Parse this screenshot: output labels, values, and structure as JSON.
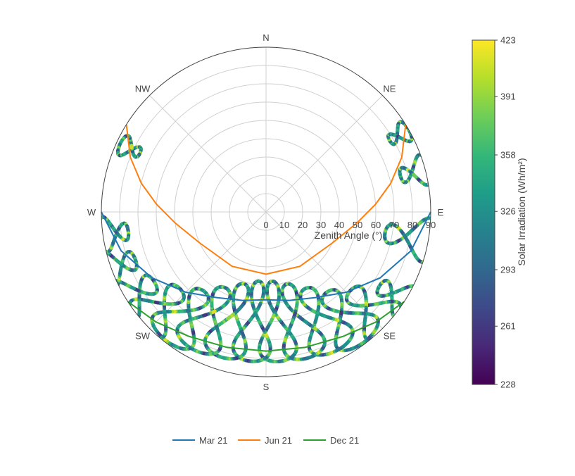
{
  "chart_data": {
    "type": "polar-line",
    "radial_axis": {
      "title": "Zenith Angle (°)",
      "range": [
        0,
        90
      ],
      "tick_labels": [
        "0",
        "10",
        "20",
        "30",
        "40",
        "50",
        "60",
        "70",
        "80",
        "90"
      ]
    },
    "angular_axis": {
      "labels": [
        "N",
        "NE",
        "E",
        "SE",
        "S",
        "SW",
        "W",
        "NW"
      ],
      "directions_deg": [
        0,
        45,
        90,
        135,
        180,
        225,
        270,
        315
      ]
    },
    "series": [
      {
        "name": "Mar 21",
        "color": "#1f77b4",
        "points": [
          [
            90,
            90
          ],
          [
            82,
            105
          ],
          [
            72,
            120
          ],
          [
            62,
            135
          ],
          [
            54,
            150
          ],
          [
            50,
            165
          ],
          [
            48,
            180
          ],
          [
            50,
            195
          ],
          [
            54,
            210
          ],
          [
            62,
            225
          ],
          [
            72,
            240
          ],
          [
            82,
            255
          ],
          [
            90,
            270
          ]
        ]
      },
      {
        "name": "Jun 21",
        "color": "#ff7f0e",
        "points": [
          [
            90,
            58
          ],
          [
            80,
            68
          ],
          [
            70,
            77
          ],
          [
            60,
            86
          ],
          [
            50,
            97
          ],
          [
            40,
            115
          ],
          [
            35,
            148
          ],
          [
            34,
            180
          ],
          [
            35,
            212
          ],
          [
            40,
            245
          ],
          [
            50,
            263
          ],
          [
            60,
            274
          ],
          [
            70,
            283
          ],
          [
            80,
            292
          ],
          [
            90,
            302
          ]
        ]
      },
      {
        "name": "Dec 21",
        "color": "#2ca02c",
        "points": [
          [
            90,
            123
          ],
          [
            85,
            135
          ],
          [
            80,
            148
          ],
          [
            77,
            164
          ],
          [
            76,
            180
          ],
          [
            77,
            196
          ],
          [
            80,
            212
          ],
          [
            85,
            225
          ],
          [
            90,
            237
          ]
        ]
      }
    ],
    "analemmas": {
      "colorbar_variable": "Solar Irradiation (Wh/m²)",
      "hour_tracks": [
        {
          "center": [
            84,
            123
          ],
          "half_span": [
            10,
            8
          ]
        },
        {
          "center": [
            78,
            133
          ],
          "half_span": [
            15,
            11
          ]
        },
        {
          "center": [
            72,
            143
          ],
          "half_span": [
            17,
            12
          ]
        },
        {
          "center": [
            66,
            153
          ],
          "half_span": [
            19,
            12
          ]
        },
        {
          "center": [
            62,
            164
          ],
          "half_span": [
            21,
            11
          ]
        },
        {
          "center": [
            60,
            175
          ],
          "half_span": [
            22,
            10
          ]
        },
        {
          "center": [
            60,
            186
          ],
          "half_span": [
            22,
            10
          ]
        },
        {
          "center": [
            62,
            197
          ],
          "half_span": [
            21,
            11
          ]
        },
        {
          "center": [
            66,
            208
          ],
          "half_span": [
            19,
            12
          ]
        },
        {
          "center": [
            72,
            218
          ],
          "half_span": [
            17,
            12
          ]
        },
        {
          "center": [
            78,
            228
          ],
          "half_span": [
            15,
            11
          ]
        },
        {
          "center": [
            84,
            238
          ],
          "half_span": [
            12,
            10
          ]
        },
        {
          "center": [
            86,
            250
          ],
          "half_span": [
            10,
            9
          ]
        },
        {
          "center": [
            84,
            262
          ],
          "half_span": [
            8,
            8
          ]
        },
        {
          "center": [
            82,
            295
          ],
          "half_span": [
            6,
            5
          ]
        }
      ],
      "east_tracks": [
        {
          "center": [
            84,
            60
          ],
          "half_span": [
            6,
            5
          ]
        },
        {
          "center": [
            84,
            75
          ],
          "half_span": [
            8,
            7
          ]
        },
        {
          "center": [
            80,
            100
          ],
          "half_span": [
            14,
            10
          ]
        }
      ],
      "irradiance_range": [
        228,
        423
      ]
    },
    "colorbar": {
      "title": "Solar Irradiation (Wh/m²)",
      "range": [
        228,
        423
      ],
      "tick_labels": [
        "228",
        "261",
        "293",
        "326",
        "358",
        "391",
        "423"
      ],
      "colorscale": [
        "#440154",
        "#482878",
        "#3e4989",
        "#31688e",
        "#26828e",
        "#1f9e89",
        "#35b779",
        "#6ece58",
        "#b5de2b",
        "#fde725"
      ]
    },
    "legend": {
      "placement": "bottom-center",
      "orientation": "horizontal",
      "items": [
        "Mar 21",
        "Jun 21",
        "Dec 21"
      ]
    },
    "grid": true
  }
}
